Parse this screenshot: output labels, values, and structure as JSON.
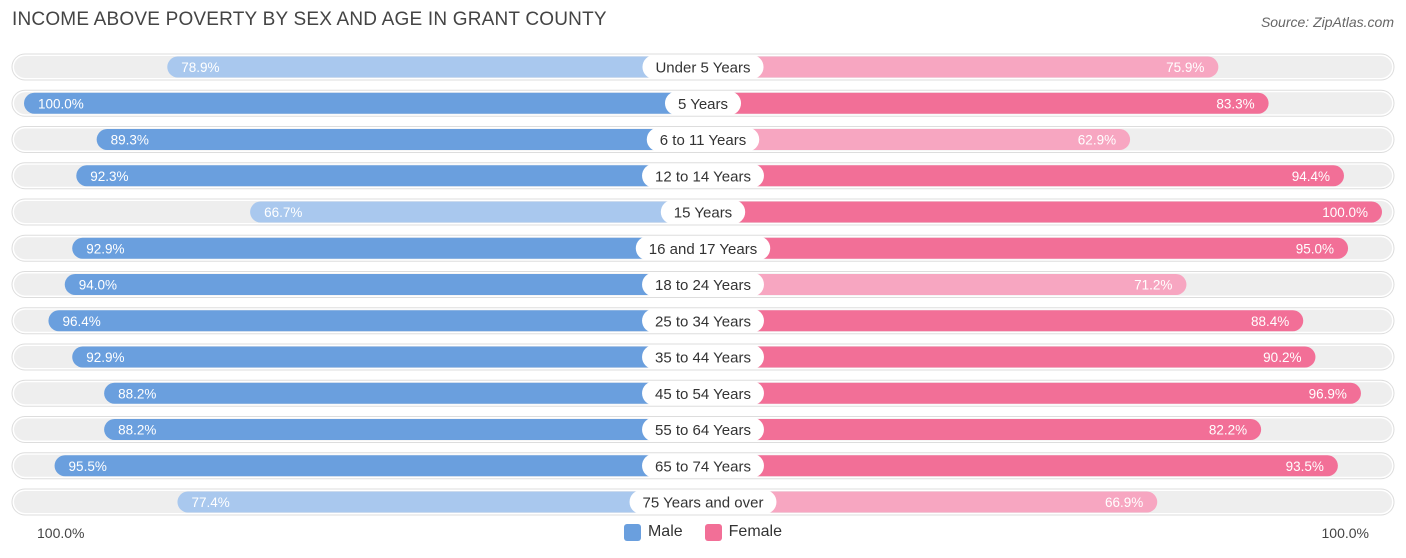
{
  "header": {
    "title": "INCOME ABOVE POVERTY BY SEX AND AGE IN GRANT COUNTY",
    "source": "Source: ZipAtlas.com"
  },
  "axis": {
    "left_label": "100.0%",
    "right_label": "100.0%"
  },
  "legend": {
    "male": "Male",
    "female": "Female"
  },
  "colors": {
    "male_dark": "#6a9fde",
    "male_light": "#a9c8ee",
    "female_dark": "#f26f97",
    "female_light": "#f7a6c1",
    "track": "#eeeeee"
  },
  "chart_data": {
    "type": "bar",
    "orientation": "horizontal-diverging",
    "title": "INCOME ABOVE POVERTY BY SEX AND AGE IN GRANT COUNTY",
    "categories": [
      "Under 5 Years",
      "5 Years",
      "6 to 11 Years",
      "12 to 14 Years",
      "15 Years",
      "16 and 17 Years",
      "18 to 24 Years",
      "25 to 34 Years",
      "35 to 44 Years",
      "45 to 54 Years",
      "55 to 64 Years",
      "65 to 74 Years",
      "75 Years and over"
    ],
    "series": [
      {
        "name": "Male",
        "values": [
          78.9,
          100.0,
          89.3,
          92.3,
          66.7,
          92.9,
          94.0,
          96.4,
          92.9,
          88.2,
          88.2,
          95.5,
          77.4
        ],
        "labels": [
          "78.9%",
          "100.0%",
          "89.3%",
          "92.3%",
          "66.7%",
          "92.9%",
          "94.0%",
          "96.4%",
          "92.9%",
          "88.2%",
          "88.2%",
          "95.5%",
          "77.4%"
        ]
      },
      {
        "name": "Female",
        "values": [
          75.9,
          83.3,
          62.9,
          94.4,
          100.0,
          95.0,
          71.2,
          88.4,
          90.2,
          96.9,
          82.2,
          93.5,
          66.9
        ],
        "labels": [
          "75.9%",
          "83.3%",
          "62.9%",
          "94.4%",
          "100.0%",
          "95.0%",
          "71.2%",
          "88.4%",
          "90.2%",
          "96.9%",
          "82.2%",
          "93.5%",
          "66.9%"
        ]
      }
    ],
    "xlim": [
      0,
      100
    ],
    "legend_position": "bottom-center"
  }
}
